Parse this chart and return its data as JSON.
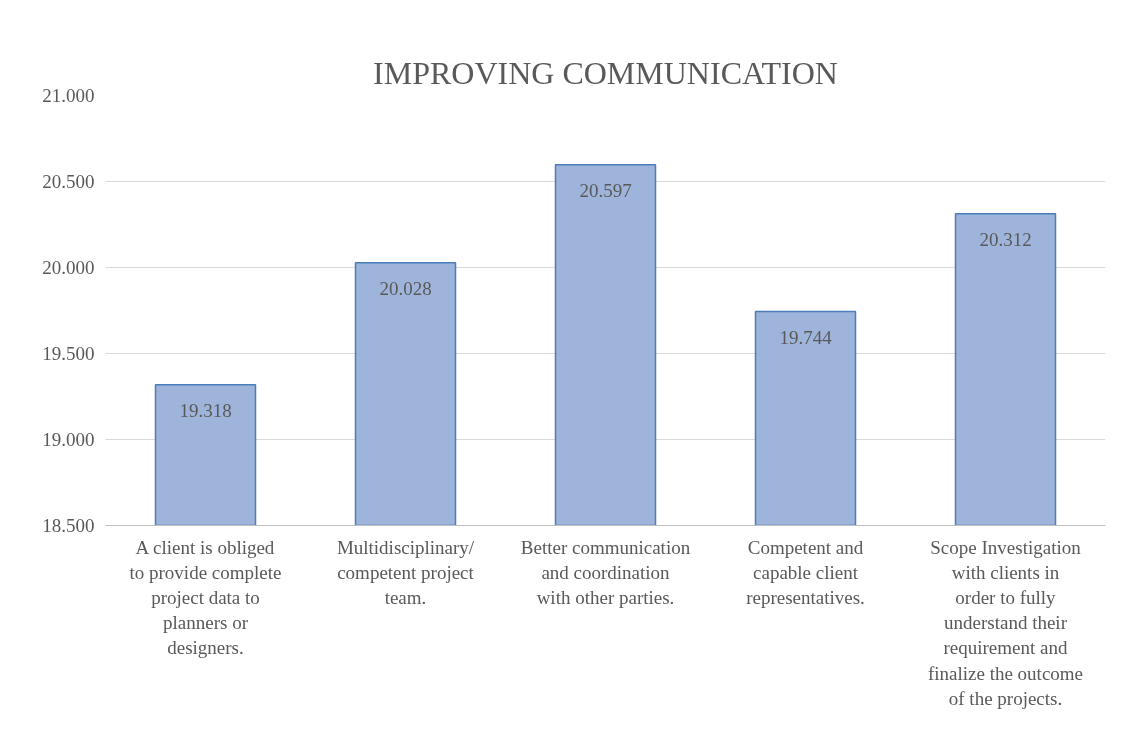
{
  "chart_data": {
    "type": "bar",
    "title": "IMPROVING COMMUNICATION",
    "categories": [
      "A client is obliged to provide complete project data to planners or designers.",
      "Multidisciplinary/ competent project team.",
      "Better communication and coordination with other parties.",
      "Competent and capable client representatives.",
      "Scope Investigation with clients in order to fully understand their requirement and finalize the outcome of the projects."
    ],
    "values": [
      19.318,
      20.028,
      20.597,
      19.744,
      20.312
    ],
    "color": "#9fb4da",
    "ylim": [
      18.5,
      21
    ],
    "yticks": [
      {
        "value": 18.5,
        "label": "18.500"
      },
      {
        "value": 19,
        "label": "19.000"
      },
      {
        "value": 19.5,
        "label": "19.500"
      },
      {
        "value": 20,
        "label": "20.000"
      },
      {
        "value": 20.5,
        "label": "20.500"
      },
      {
        "value": 21,
        "label": "21.000"
      }
    ],
    "grid": "y",
    "data_labels": true
  }
}
